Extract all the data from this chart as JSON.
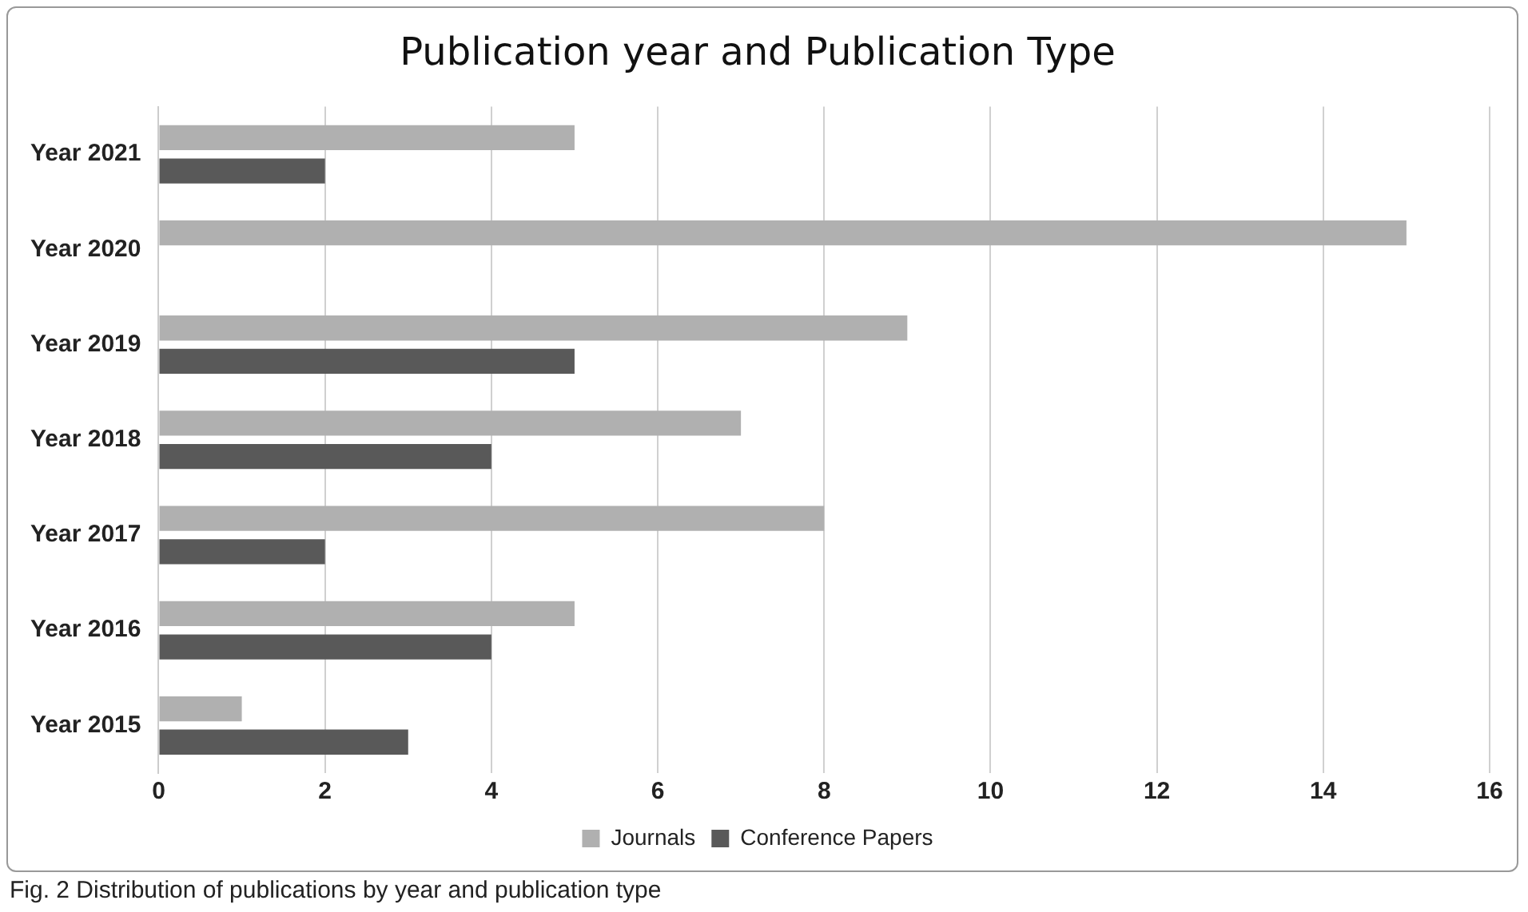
{
  "chart_data": {
    "type": "bar",
    "orientation": "horizontal",
    "title": "Publication year and Publication Type",
    "categories": [
      "Year 2021",
      "Year 2020",
      "Year 2019",
      "Year 2018",
      "Year 2017",
      "Year 2016",
      "Year 2015"
    ],
    "series": [
      {
        "name": "Journals",
        "color": "#b0b0b0",
        "values": [
          5,
          15,
          9,
          7,
          8,
          5,
          1
        ]
      },
      {
        "name": "Conference Papers",
        "color": "#595959",
        "values": [
          2,
          null,
          5,
          4,
          2,
          4,
          3
        ]
      }
    ],
    "xlim": [
      0,
      16
    ],
    "xticks": [
      0,
      2,
      4,
      6,
      8,
      10,
      12,
      14,
      16
    ],
    "grid": "x",
    "legend": "bottom",
    "annotations": [
      "Fig. 2  Distribution of publications by year and publication type"
    ]
  }
}
